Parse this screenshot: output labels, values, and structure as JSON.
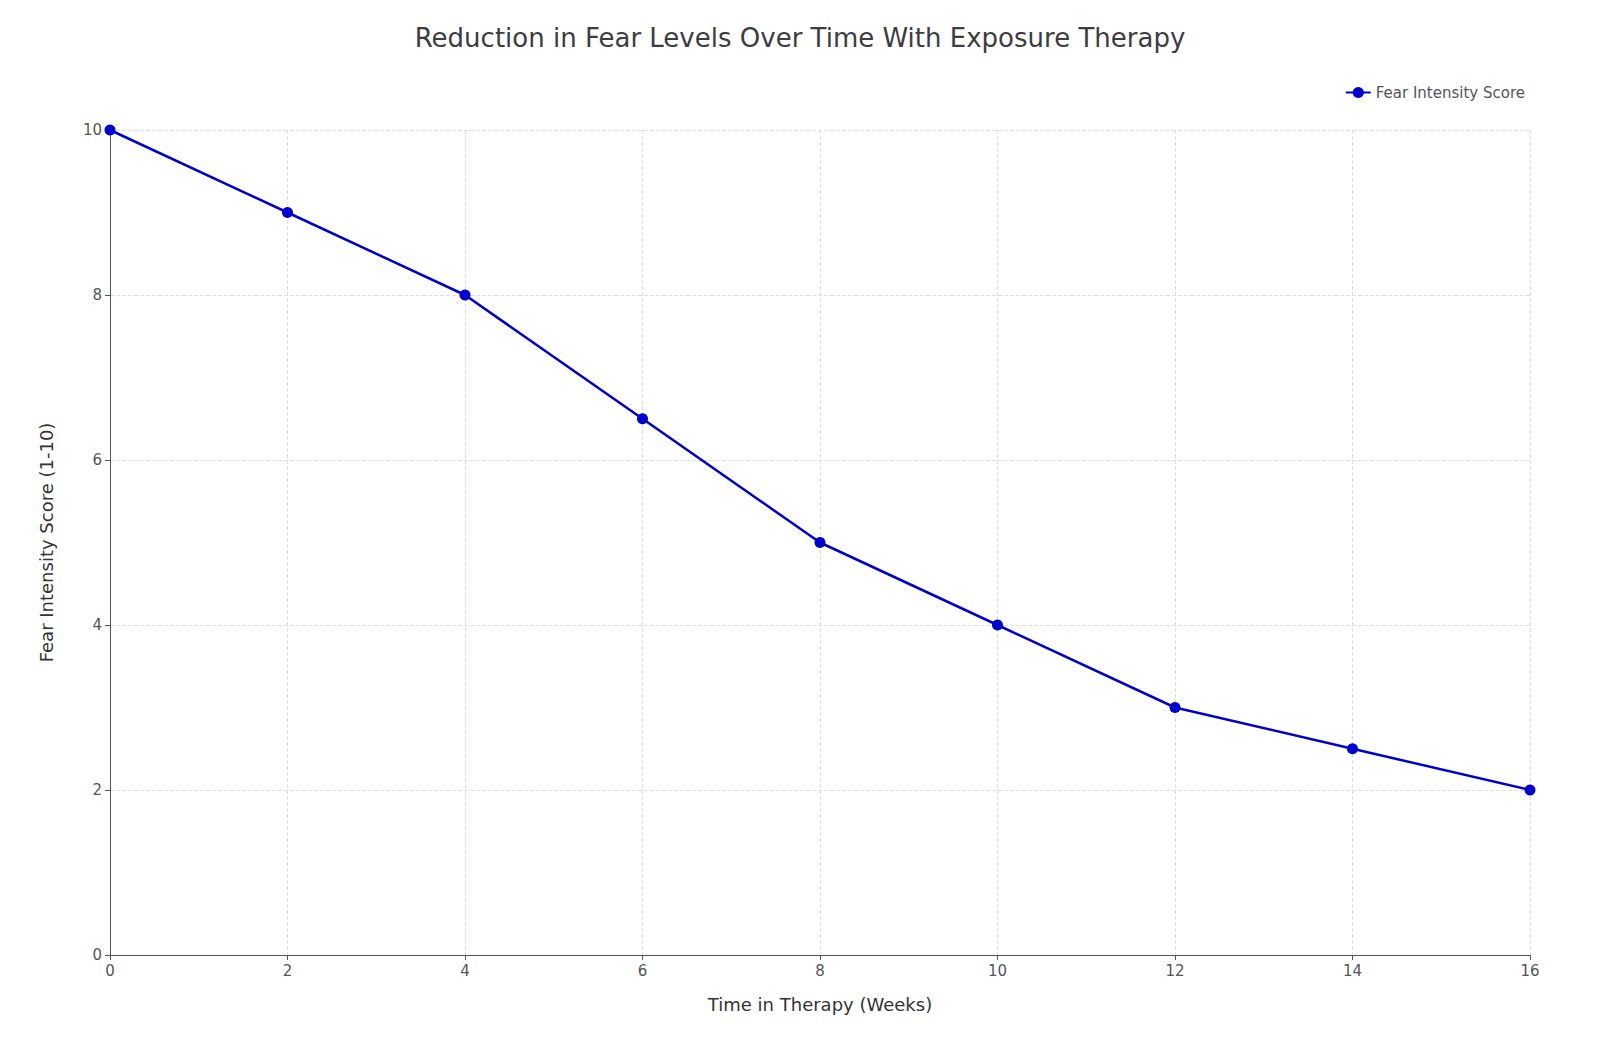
{
  "chart_data": {
    "type": "line",
    "title": "Reduction in Fear Levels Over Time With Exposure Therapy",
    "xlabel": "Time in Therapy (Weeks)",
    "ylabel": "Fear Intensity Score (1-10)",
    "x": [
      0,
      2,
      4,
      6,
      8,
      10,
      12,
      14,
      16
    ],
    "series": [
      {
        "name": "Fear Intensity Score",
        "color": "#0000CC",
        "marker": "circle",
        "values": [
          10,
          9,
          8,
          6.5,
          5,
          4,
          3,
          2.5,
          2
        ]
      }
    ],
    "xlim": [
      0,
      16
    ],
    "xticks": [
      0,
      2,
      4,
      6,
      8,
      10,
      12,
      14,
      16
    ],
    "ylim": [
      0,
      10
    ],
    "yticks": [
      0,
      2,
      4,
      6,
      8,
      10
    ],
    "grid": true,
    "legend": "upper right"
  }
}
